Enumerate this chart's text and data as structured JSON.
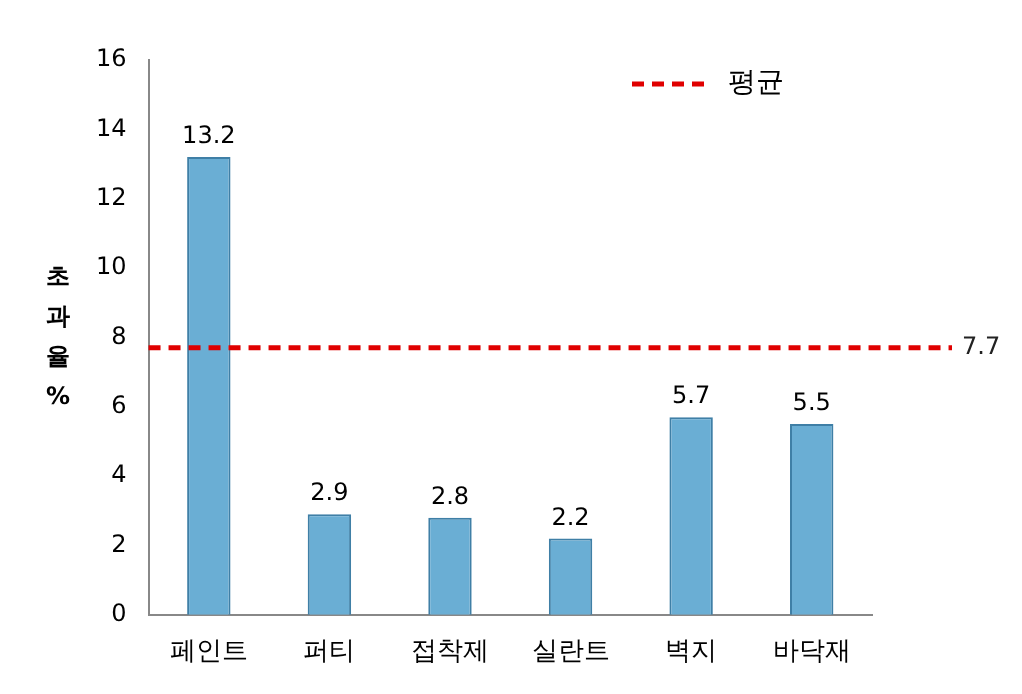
{
  "chart_data": {
    "type": "bar",
    "ylabel": "초과율 %",
    "categories": [
      "페인트",
      "퍼티",
      "접착제",
      "실란트",
      "벽지",
      "바닥재"
    ],
    "values": [
      13.2,
      2.9,
      2.8,
      2.2,
      5.7,
      5.5
    ],
    "color": "#6aaed4",
    "ylim": [
      0,
      16
    ],
    "yticks": [
      0,
      2,
      4,
      6,
      8,
      10,
      12,
      14,
      16
    ],
    "grid": false,
    "data_labels": true,
    "legend": "top right",
    "ref_lines": [
      {
        "axis": "y",
        "value": 7.7,
        "label": "평균",
        "color": "#e00000",
        "line_style": "dashed"
      }
    ],
    "annotations": [
      "7.7"
    ]
  }
}
